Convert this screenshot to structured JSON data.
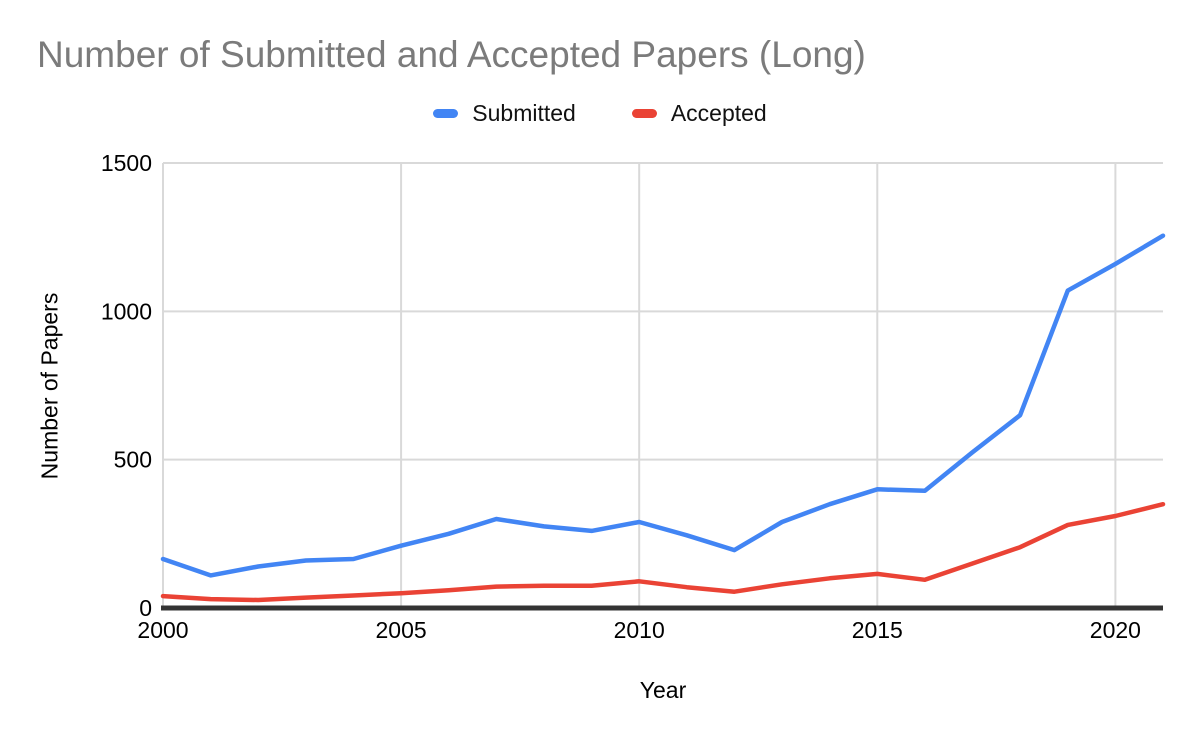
{
  "chart_data": {
    "type": "line",
    "title": "Number of Submitted and Accepted Papers (Long)",
    "xlabel": "Year",
    "ylabel": "Number of Papers",
    "x": [
      2000,
      2001,
      2002,
      2003,
      2004,
      2005,
      2006,
      2007,
      2008,
      2009,
      2010,
      2011,
      2012,
      2013,
      2014,
      2015,
      2016,
      2017,
      2018,
      2019,
      2020,
      2021
    ],
    "series": [
      {
        "name": "Submitted",
        "color": "#4285F4",
        "values": [
          165,
          110,
          140,
          160,
          165,
          210,
          250,
          300,
          275,
          260,
          290,
          245,
          195,
          290,
          350,
          400,
          395,
          525,
          650,
          1070,
          1160,
          1255
        ]
      },
      {
        "name": "Accepted",
        "color": "#EA4335",
        "values": [
          40,
          30,
          27,
          35,
          42,
          50,
          60,
          72,
          75,
          75,
          90,
          70,
          55,
          80,
          100,
          115,
          95,
          150,
          205,
          280,
          310,
          350
        ]
      }
    ],
    "ylim": [
      0,
      1500
    ],
    "xlim": [
      2000,
      2021
    ],
    "y_ticks": [
      0,
      500,
      1000,
      1500
    ],
    "y_tick_labels": [
      "0",
      "500",
      "1000",
      "1500"
    ],
    "x_ticks": [
      2000,
      2005,
      2010,
      2015,
      2020
    ],
    "x_tick_labels": [
      "2000",
      "2005",
      "2010",
      "2015",
      "2020"
    ],
    "grid": true,
    "legend_position": "top",
    "title_color": "#7B7B7B",
    "grid_color": "#D9D9D9",
    "axis_color": "#333333",
    "tick_label_color": "#000000"
  }
}
